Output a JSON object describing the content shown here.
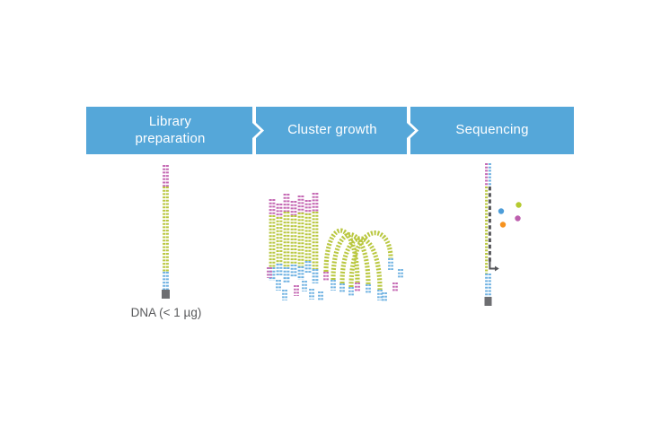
{
  "banner": {
    "background": "#55a7d9",
    "text_color": "#ffffff",
    "steps": [
      {
        "label": "Library preparation"
      },
      {
        "label": "Cluster growth"
      },
      {
        "label": "Sequencing"
      }
    ]
  },
  "annotations": {
    "dna_label": "DNA (< 1 µg)"
  },
  "palette": {
    "strand_magenta": "#c56ab4",
    "strand_green": "#b9c73f",
    "strand_blue": "#70b2e2",
    "strand_gray": "#6d6e71",
    "dash_gray": "#55565a",
    "dot_green": "#b5ca30",
    "dot_blue": "#4d9dd9",
    "dot_magenta": "#bd5fae",
    "dot_orange": "#f6921e",
    "label_text": "#58595b"
  }
}
